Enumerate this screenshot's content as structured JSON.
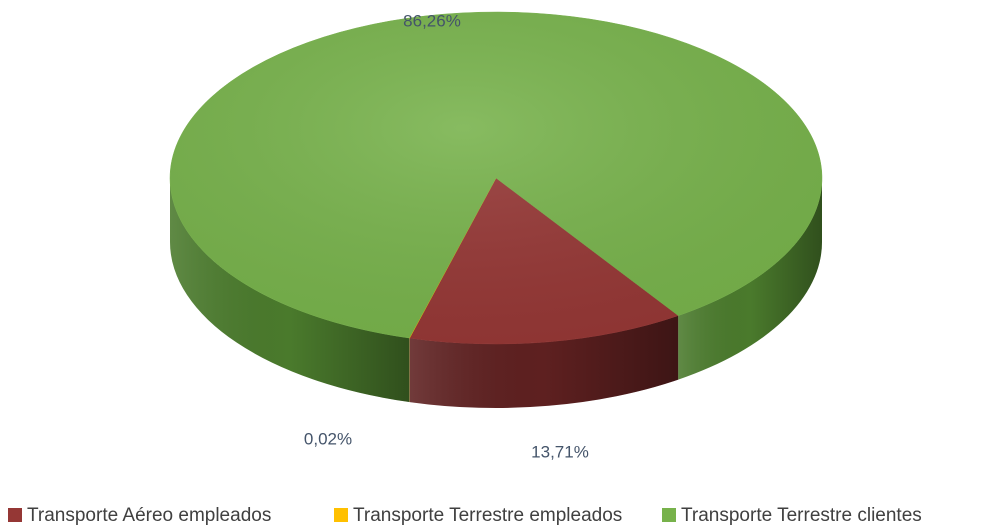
{
  "chart_data": {
    "type": "pie3d",
    "categories": [
      "Transporte Aéreo empleados",
      "Transporte Terrestre empleados",
      "Transporte Terrestre clientes"
    ],
    "values": [
      13.71,
      0.02,
      86.26
    ],
    "value_labels": [
      "13,71%",
      "0,02%",
      "86,26%"
    ],
    "colors": [
      "#953735",
      "#ffc000",
      "#77b24b"
    ],
    "side_colors": [
      "#5e2020",
      "#b08500",
      "#4a7a2c"
    ],
    "legend": "bottom"
  }
}
